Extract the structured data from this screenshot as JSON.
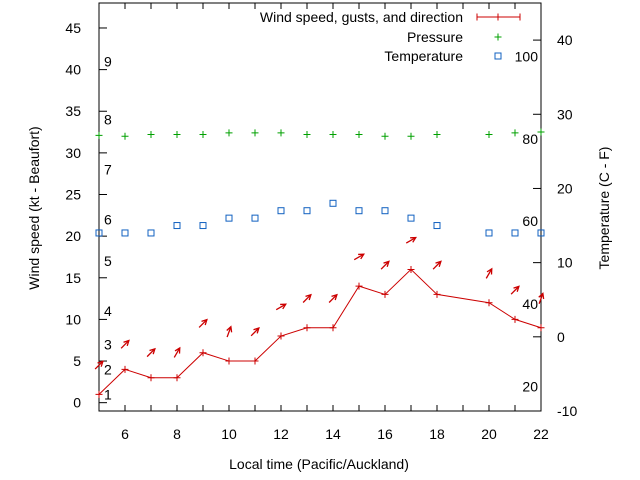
{
  "chart_data": {
    "type": "line",
    "xlabel": "Local time (Pacific/Auckland)",
    "ylabel_left": "Wind speed (kt - Beaufort)",
    "ylabel_right": "Temperature (C - F)",
    "xlim": [
      5,
      22
    ],
    "x_ticks": [
      6,
      8,
      10,
      12,
      14,
      16,
      18,
      20,
      22
    ],
    "ylim_left": [
      -1,
      48
    ],
    "y_ticks_left": [
      0,
      5,
      10,
      15,
      20,
      25,
      30,
      35,
      40,
      45
    ],
    "ylim_right": [
      -10,
      45
    ],
    "y_ticks_right": [
      -10,
      0,
      10,
      20,
      30,
      40
    ],
    "beaufort_labels": [
      {
        "label": "1",
        "kt": 1
      },
      {
        "label": "2",
        "kt": 4
      },
      {
        "label": "3",
        "kt": 7
      },
      {
        "label": "4",
        "kt": 11
      },
      {
        "label": "5",
        "kt": 17
      },
      {
        "label": "6",
        "kt": 22
      },
      {
        "label": "7",
        "kt": 28
      },
      {
        "label": "8",
        "kt": 34
      },
      {
        "label": "9",
        "kt": 41
      }
    ],
    "fahrenheit_labels": [
      {
        "label": "20",
        "celsius": -6.7
      },
      {
        "label": "40",
        "celsius": 4.4
      },
      {
        "label": "60",
        "celsius": 15.6
      },
      {
        "label": "80",
        "celsius": 26.7
      },
      {
        "label": "100",
        "celsius": 37.8
      }
    ],
    "series": [
      {
        "name": "Wind speed, gusts, and direction",
        "color": "#cc0000",
        "x": [
          5,
          6,
          7,
          8,
          9,
          10,
          11,
          12,
          13,
          14,
          15,
          16,
          17,
          18,
          20,
          21,
          22
        ],
        "values": [
          1,
          4,
          3,
          3,
          6,
          5,
          5,
          8,
          9,
          9,
          14,
          13,
          16,
          13,
          12,
          10,
          9
        ],
        "arrows": [
          {
            "x": 5,
            "kt": 4.5,
            "angle": 225
          },
          {
            "x": 6,
            "kt": 7,
            "angle": 225
          },
          {
            "x": 7,
            "kt": 6,
            "angle": 225
          },
          {
            "x": 8,
            "kt": 6,
            "angle": 210
          },
          {
            "x": 9,
            "kt": 9.5,
            "angle": 225
          },
          {
            "x": 10,
            "kt": 8.5,
            "angle": 200
          },
          {
            "x": 11,
            "kt": 8.5,
            "angle": 225
          },
          {
            "x": 12,
            "kt": 11.5,
            "angle": 240
          },
          {
            "x": 13,
            "kt": 12.5,
            "angle": 225
          },
          {
            "x": 14,
            "kt": 12.5,
            "angle": 225
          },
          {
            "x": 15,
            "kt": 17.5,
            "angle": 240
          },
          {
            "x": 16,
            "kt": 16.5,
            "angle": 225
          },
          {
            "x": 17,
            "kt": 19.5,
            "angle": 240
          },
          {
            "x": 18,
            "kt": 16.5,
            "angle": 225
          },
          {
            "x": 20,
            "kt": 15.5,
            "angle": 210
          },
          {
            "x": 21,
            "kt": 13.5,
            "angle": 225
          },
          {
            "x": 22,
            "kt": 12.5,
            "angle": 200
          }
        ]
      },
      {
        "name": "Pressure",
        "color": "#00a000",
        "marker": "plus",
        "x": [
          5,
          6,
          7,
          8,
          9,
          10,
          11,
          12,
          13,
          14,
          15,
          16,
          17,
          18,
          20,
          21,
          22
        ],
        "values": [
          32.1,
          32,
          32.2,
          32.2,
          32.2,
          32.4,
          32.4,
          32.4,
          32.2,
          32.2,
          32.2,
          32,
          32,
          32.2,
          32.2,
          32.4,
          32.5
        ]
      },
      {
        "name": "Temperature",
        "color": "#1060c0",
        "marker": "square",
        "axis": "right",
        "x": [
          5,
          6,
          7,
          8,
          9,
          10,
          11,
          12,
          13,
          14,
          15,
          16,
          17,
          18,
          20,
          21,
          22
        ],
        "values": [
          14,
          14,
          14,
          15,
          15,
          16,
          16,
          17,
          17,
          18,
          17,
          17,
          16,
          15,
          14,
          14,
          14
        ]
      }
    ]
  }
}
